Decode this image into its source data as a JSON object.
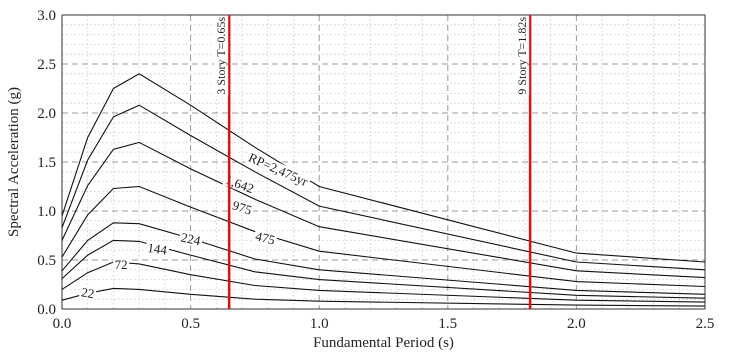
{
  "chart_data": {
    "type": "line",
    "xlabel": "Fundamental Period (s)",
    "ylabel": "Spectral Acceleration (g)",
    "xlim": [
      0,
      2.5
    ],
    "ylim": [
      0,
      3.0
    ],
    "x_ticks": [
      "0.0",
      "0.5",
      "1.0",
      "1.5",
      "2.0",
      "2.5"
    ],
    "y_ticks": [
      "0.0",
      "0.5",
      "1.0",
      "1.5",
      "2.0",
      "2.5",
      "3.0"
    ],
    "grid": "major dashed, minor dotted",
    "x": [
      0.0,
      0.1,
      0.2,
      0.3,
      0.5,
      0.75,
      1.0,
      2.0,
      2.5
    ],
    "series": [
      {
        "name": "RP=2,475yr",
        "values": [
          0.95,
          1.75,
          2.25,
          2.4,
          2.08,
          1.65,
          1.25,
          0.57,
          0.48
        ]
      },
      {
        "name": "1,642",
        "values": [
          0.83,
          1.52,
          1.96,
          2.08,
          1.77,
          1.4,
          1.05,
          0.48,
          0.4
        ]
      },
      {
        "name": "975",
        "values": [
          0.7,
          1.26,
          1.63,
          1.7,
          1.43,
          1.12,
          0.84,
          0.39,
          0.32
        ]
      },
      {
        "name": "475",
        "values": [
          0.53,
          0.96,
          1.23,
          1.25,
          1.04,
          0.79,
          0.59,
          0.28,
          0.23
        ]
      },
      {
        "name": "224",
        "values": [
          0.39,
          0.7,
          0.88,
          0.87,
          0.72,
          0.51,
          0.4,
          0.19,
          0.15
        ]
      },
      {
        "name": "144",
        "values": [
          0.31,
          0.55,
          0.7,
          0.69,
          0.55,
          0.38,
          0.3,
          0.14,
          0.11
        ]
      },
      {
        "name": "72",
        "values": [
          0.2,
          0.37,
          0.48,
          0.46,
          0.35,
          0.24,
          0.19,
          0.09,
          0.07
        ]
      },
      {
        "name": "22",
        "values": [
          0.09,
          0.16,
          0.21,
          0.2,
          0.15,
          0.1,
          0.08,
          0.04,
          0.03
        ]
      }
    ],
    "vertical_lines": [
      {
        "label": "3 Story T=0.65s",
        "x": 0.65,
        "color": "#e01010"
      },
      {
        "label": "9 Story T=1.82s",
        "x": 1.82,
        "color": "#e01010"
      }
    ],
    "curve_label_positions": [
      {
        "series": "RP=2,475yr",
        "x": 0.84,
        "y": 1.42,
        "angle": 24
      },
      {
        "series": "1,642",
        "x": 0.69,
        "y": 1.27,
        "angle": 20
      },
      {
        "series": "975",
        "x": 0.7,
        "y": 1.03,
        "angle": 18
      },
      {
        "series": "475",
        "x": 0.79,
        "y": 0.72,
        "angle": 14
      },
      {
        "series": "224",
        "x": 0.5,
        "y": 0.71,
        "angle": 12
      },
      {
        "series": "144",
        "x": 0.37,
        "y": 0.61,
        "angle": 8
      },
      {
        "series": "72",
        "x": 0.23,
        "y": 0.45,
        "angle": 0
      },
      {
        "series": "22",
        "x": 0.1,
        "y": 0.16,
        "angle": 10
      }
    ],
    "line_color": "#111111"
  }
}
